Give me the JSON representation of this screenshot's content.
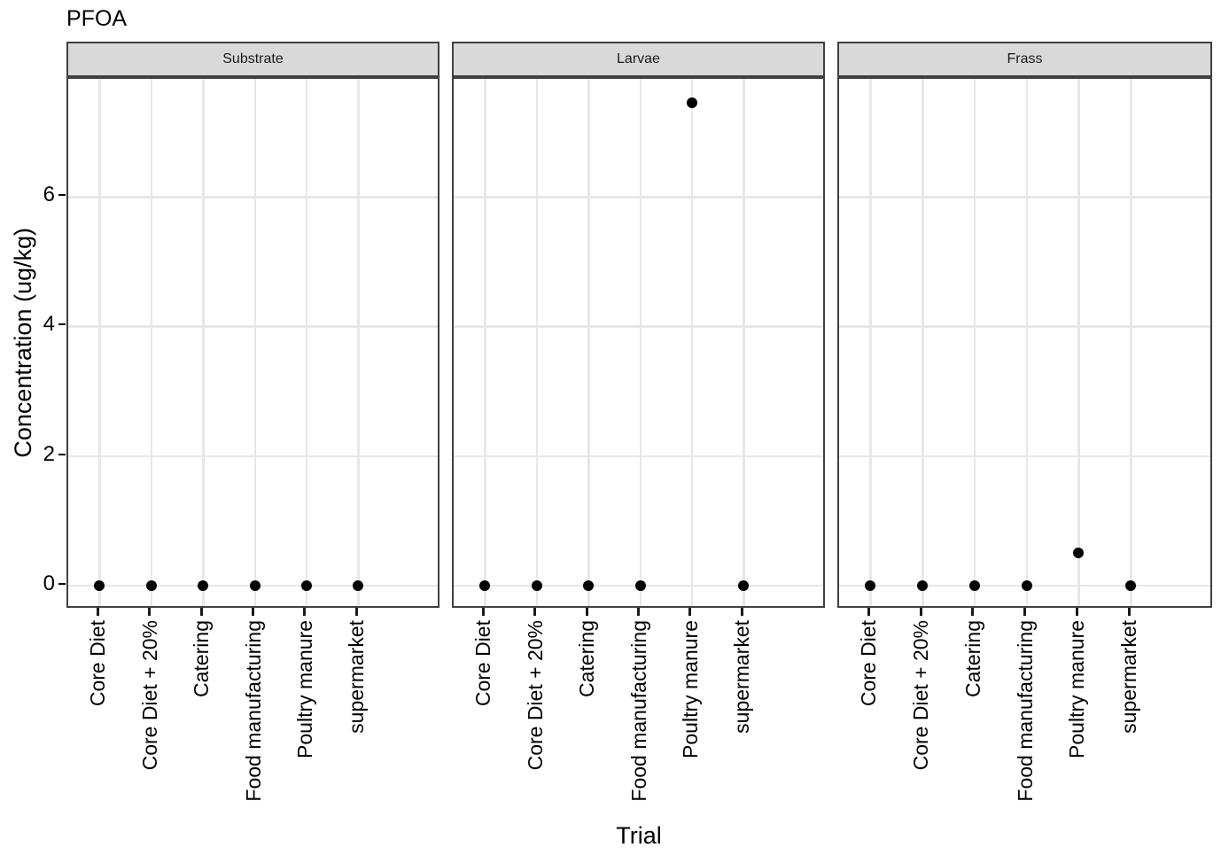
{
  "page": {
    "title": "PFOA"
  },
  "chart_data": {
    "type": "scatter",
    "title": "PFOA",
    "xlabel": "Trial",
    "ylabel": "Concentration (ug/kg)",
    "facets": [
      "Substrate",
      "Larvae",
      "Frass"
    ],
    "categories": [
      "Core Diet",
      "Core Diet + 20%",
      "Catering",
      "Food manufacturing",
      "Poultry manure",
      "supermarket"
    ],
    "series": [
      {
        "name": "Substrate",
        "values": [
          0,
          0,
          0,
          0,
          0,
          0
        ]
      },
      {
        "name": "Larvae",
        "values": [
          0,
          0,
          0,
          0,
          7.45,
          0
        ]
      },
      {
        "name": "Frass",
        "values": [
          0,
          0,
          0,
          0,
          0.5,
          0
        ]
      }
    ],
    "yticks": [
      0,
      2,
      4,
      6
    ],
    "ylim": [
      -0.37,
      7.82
    ],
    "grid": true,
    "legend": "none",
    "colors": {
      "point": "#000000",
      "strip_background": "#d9d9d9",
      "panel_border": "#404040",
      "gridline": "#e7e7e7",
      "tick": "#000000",
      "text": "#000000"
    }
  }
}
